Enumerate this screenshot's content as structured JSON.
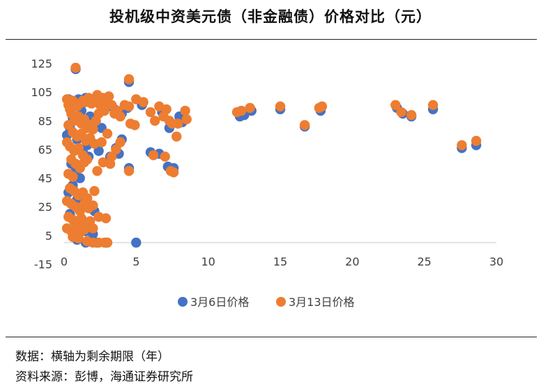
{
  "title": "投机级中资美元债（非金融债）价格对比（元）",
  "notes": {
    "line1": "数据：横轴为剩余期限（年）",
    "line2": "资料来源：彭博，海通证券研究所"
  },
  "chart_data": {
    "type": "scatter",
    "title": "投机级中资美元债（非金融债）价格对比（元）",
    "xlabel": "",
    "ylabel": "",
    "xlim": [
      0,
      30
    ],
    "ylim": [
      -15,
      125
    ],
    "xticks": [
      0,
      5,
      10,
      15,
      20,
      25,
      30
    ],
    "yticks": [
      -15,
      5,
      25,
      45,
      65,
      85,
      105,
      125
    ],
    "grid": false,
    "legend": "bottom",
    "series": [
      {
        "name": "3月6日价格",
        "color": "#4472C4",
        "points": [
          [
            0.8,
            121
          ],
          [
            0.3,
            100
          ],
          [
            0.5,
            98
          ],
          [
            0.7,
            96
          ],
          [
            1.0,
            100
          ],
          [
            1.5,
            101
          ],
          [
            2.0,
            99
          ],
          [
            2.5,
            97
          ],
          [
            3.0,
            95
          ],
          [
            3.5,
            93
          ],
          [
            4.0,
            90
          ],
          [
            1.2,
            92
          ],
          [
            1.8,
            88
          ],
          [
            2.2,
            85
          ],
          [
            0.6,
            87
          ],
          [
            1.4,
            84
          ],
          [
            2.6,
            80
          ],
          [
            0.4,
            80
          ],
          [
            0.2,
            75
          ],
          [
            0.9,
            72
          ],
          [
            1.6,
            68
          ],
          [
            1.3,
            63
          ],
          [
            1.7,
            60
          ],
          [
            2.4,
            64
          ],
          [
            3.2,
            60
          ],
          [
            3.8,
            62
          ],
          [
            4.0,
            72
          ],
          [
            3.6,
            66
          ],
          [
            0.5,
            55
          ],
          [
            0.8,
            50
          ],
          [
            1.1,
            45
          ],
          [
            0.6,
            40
          ],
          [
            0.3,
            35
          ],
          [
            0.9,
            30
          ],
          [
            1.3,
            28
          ],
          [
            1.8,
            25
          ],
          [
            2.1,
            22
          ],
          [
            0.4,
            20
          ],
          [
            0.7,
            15
          ],
          [
            1.0,
            10
          ],
          [
            1.5,
            8
          ],
          [
            2.0,
            6
          ],
          [
            0.9,
            2
          ],
          [
            1.5,
            0
          ],
          [
            2.3,
            0
          ],
          [
            2.9,
            0
          ],
          [
            5.0,
            0
          ],
          [
            4.5,
            112
          ],
          [
            4.4,
            94
          ],
          [
            5.4,
            96
          ],
          [
            6.0,
            63
          ],
          [
            6.6,
            62
          ],
          [
            7.2,
            53
          ],
          [
            7.6,
            52
          ],
          [
            4.5,
            52
          ],
          [
            7.3,
            80
          ],
          [
            8.2,
            84
          ],
          [
            8.0,
            88
          ],
          [
            6.8,
            91
          ],
          [
            12.2,
            88
          ],
          [
            12.5,
            89
          ],
          [
            13.0,
            92
          ],
          [
            15.0,
            93
          ],
          [
            16.7,
            81
          ],
          [
            17.8,
            92
          ],
          [
            23.1,
            94
          ],
          [
            23.5,
            90
          ],
          [
            24.1,
            88
          ],
          [
            25.6,
            93
          ],
          [
            27.6,
            66
          ],
          [
            28.6,
            68
          ]
        ]
      },
      {
        "name": "3月13日价格",
        "color": "#ED7D31",
        "points": [
          [
            0.8,
            122
          ],
          [
            0.2,
            100
          ],
          [
            0.3,
            96
          ],
          [
            0.4,
            93
          ],
          [
            0.6,
            99
          ],
          [
            0.9,
            95
          ],
          [
            1.1,
            97
          ],
          [
            1.3,
            99
          ],
          [
            1.5,
            98
          ],
          [
            1.7,
            101
          ],
          [
            1.9,
            97
          ],
          [
            2.1,
            99
          ],
          [
            2.3,
            103
          ],
          [
            2.5,
            96
          ],
          [
            2.7,
            101
          ],
          [
            2.9,
            98
          ],
          [
            3.1,
            102
          ],
          [
            3.3,
            96
          ],
          [
            3.5,
            90
          ],
          [
            3.7,
            92
          ],
          [
            3.9,
            88
          ],
          [
            4.2,
            96
          ],
          [
            4.5,
            95
          ],
          [
            0.5,
            90
          ],
          [
            0.7,
            85
          ],
          [
            1.0,
            88
          ],
          [
            1.2,
            83
          ],
          [
            1.4,
            86
          ],
          [
            1.6,
            80
          ],
          [
            1.8,
            82
          ],
          [
            2.0,
            79
          ],
          [
            2.2,
            85
          ],
          [
            2.4,
            90
          ],
          [
            2.8,
            92
          ],
          [
            0.3,
            82
          ],
          [
            0.6,
            77
          ],
          [
            0.9,
            74
          ],
          [
            1.2,
            76
          ],
          [
            1.5,
            71
          ],
          [
            1.8,
            73
          ],
          [
            2.1,
            69
          ],
          [
            0.2,
            70
          ],
          [
            0.4,
            67
          ],
          [
            0.7,
            64
          ],
          [
            1.0,
            66
          ],
          [
            1.3,
            61
          ],
          [
            1.6,
            58
          ],
          [
            2.6,
            70
          ],
          [
            3.0,
            76
          ],
          [
            3.3,
            60
          ],
          [
            3.9,
            70
          ],
          [
            3.6,
            65
          ],
          [
            0.5,
            58
          ],
          [
            0.8,
            55
          ],
          [
            1.1,
            52
          ],
          [
            1.4,
            56
          ],
          [
            0.3,
            48
          ],
          [
            0.6,
            46
          ],
          [
            2.3,
            50
          ],
          [
            2.7,
            56
          ],
          [
            3.2,
            55
          ],
          [
            0.4,
            38
          ],
          [
            0.7,
            36
          ],
          [
            1.0,
            33
          ],
          [
            1.3,
            35
          ],
          [
            1.6,
            31
          ],
          [
            2.1,
            36
          ],
          [
            0.2,
            29
          ],
          [
            0.5,
            27
          ],
          [
            0.8,
            25
          ],
          [
            1.1,
            22
          ],
          [
            1.4,
            27
          ],
          [
            1.7,
            24
          ],
          [
            2.0,
            26
          ],
          [
            0.3,
            18
          ],
          [
            0.6,
            16
          ],
          [
            0.9,
            14
          ],
          [
            1.2,
            17
          ],
          [
            1.5,
            13
          ],
          [
            1.8,
            15
          ],
          [
            2.4,
            18
          ],
          [
            2.9,
            17
          ],
          [
            0.2,
            10
          ],
          [
            0.5,
            8
          ],
          [
            0.8,
            11
          ],
          [
            1.1,
            7
          ],
          [
            1.4,
            9
          ],
          [
            1.7,
            12
          ],
          [
            2.0,
            10
          ],
          [
            0.6,
            4
          ],
          [
            1.0,
            3
          ],
          [
            1.6,
            1
          ],
          [
            2.0,
            0
          ],
          [
            2.4,
            0
          ],
          [
            2.8,
            0
          ],
          [
            3.0,
            0
          ],
          [
            4.5,
            114
          ],
          [
            4.6,
            83
          ],
          [
            4.9,
            82
          ],
          [
            5.0,
            100
          ],
          [
            5.5,
            98
          ],
          [
            4.5,
            50
          ],
          [
            6.0,
            91
          ],
          [
            6.3,
            85
          ],
          [
            6.6,
            95
          ],
          [
            6.9,
            88
          ],
          [
            7.1,
            93
          ],
          [
            7.3,
            85
          ],
          [
            7.5,
            83
          ],
          [
            7.0,
            60
          ],
          [
            6.2,
            61
          ],
          [
            7.4,
            50
          ],
          [
            7.6,
            49
          ],
          [
            8.4,
            92
          ],
          [
            7.8,
            74
          ],
          [
            7.9,
            83
          ],
          [
            8.5,
            86
          ],
          [
            12.0,
            91
          ],
          [
            12.3,
            92
          ],
          [
            12.9,
            94
          ],
          [
            15.0,
            95
          ],
          [
            16.7,
            82
          ],
          [
            17.7,
            94
          ],
          [
            17.9,
            95
          ],
          [
            23.0,
            96
          ],
          [
            23.4,
            91
          ],
          [
            24.1,
            89
          ],
          [
            25.6,
            96
          ],
          [
            27.6,
            68
          ],
          [
            28.6,
            71
          ]
        ]
      }
    ]
  }
}
